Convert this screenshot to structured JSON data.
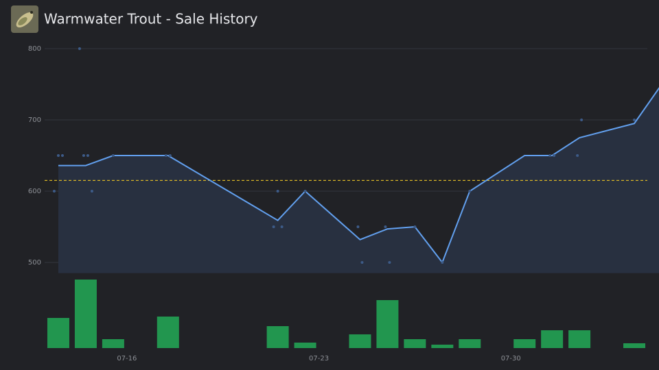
{
  "chart_data": [
    {
      "type": "line",
      "title": "Warmwater Trout - Sale History",
      "x": [
        "07-13",
        "07-14",
        "07-15",
        "07-17",
        "07-21",
        "07-22",
        "07-24",
        "07-25",
        "07-26",
        "07-27",
        "07-28",
        "07-30",
        "07-31",
        "08-01",
        "08-03",
        "08-04"
      ],
      "values": [
        636,
        636,
        650,
        650,
        559,
        600,
        532,
        547,
        550,
        500,
        600,
        650,
        650,
        675,
        695,
        750
      ],
      "color": "#62a0ef",
      "area_color": "#283040",
      "points": {
        "x": [
          "07-13",
          "07-13",
          "07-13",
          "07-14",
          "07-14",
          "07-14",
          "07-14",
          "07-15",
          "07-17",
          "07-17",
          "07-21",
          "07-21",
          "07-21",
          "07-22",
          "07-24",
          "07-24",
          "07-25",
          "07-25",
          "07-26",
          "07-27",
          "07-28",
          "07-31",
          "07-31",
          "08-01",
          "08-01",
          "08-03"
        ],
        "values": [
          600,
          650,
          650,
          800,
          650,
          650,
          600,
          650,
          650,
          650,
          550,
          600,
          550,
          600,
          550,
          500,
          550,
          500,
          550,
          500,
          600,
          650,
          650,
          650,
          700,
          700
        ],
        "color": "#3d5b88"
      },
      "reference_line": 615,
      "reference_color": "#d9b526",
      "xlim": [
        "07-13",
        "08-04"
      ],
      "ylim": [
        485,
        815
      ],
      "yticks": [
        500,
        600,
        700,
        800
      ],
      "grid": true
    },
    {
      "type": "bar",
      "x": [
        "07-13",
        "07-14",
        "07-15",
        "07-17",
        "07-21",
        "07-22",
        "07-24",
        "07-25",
        "07-26",
        "07-27",
        "07-28",
        "07-30",
        "07-31",
        "08-01",
        "08-03"
      ],
      "values": [
        44,
        100,
        13,
        46,
        32,
        8,
        20,
        70,
        13,
        5,
        13,
        13,
        26,
        26,
        7
      ],
      "color": "#22964f",
      "xlim": [
        "07-13",
        "08-04"
      ],
      "xticks": [
        "07-16",
        "07-23",
        "07-30"
      ],
      "ylim": [
        0,
        100
      ]
    }
  ]
}
